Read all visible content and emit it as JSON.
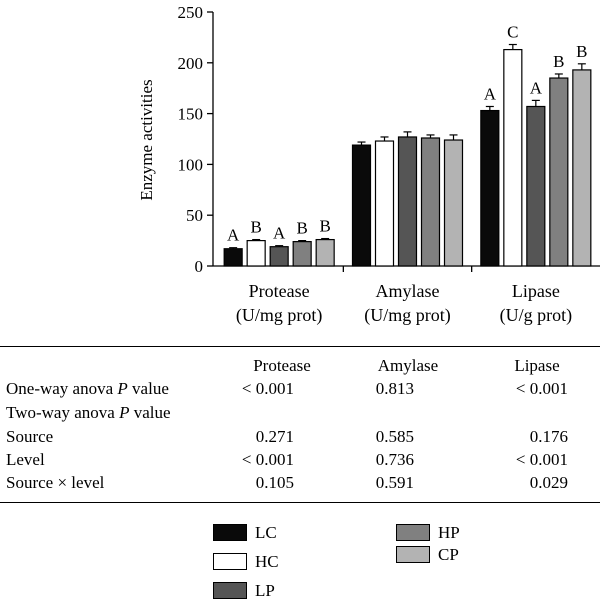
{
  "chart_data": {
    "type": "bar",
    "ylabel": "Enzyme activities",
    "ylim": [
      0,
      250
    ],
    "yticks": [
      0,
      50,
      100,
      150,
      200,
      250
    ],
    "categories": [
      {
        "line1": "Protease",
        "line2": "(U/mg prot)"
      },
      {
        "line1": "Amylase",
        "line2": "(U/mg prot)"
      },
      {
        "line1": "Lipase",
        "line2": "(U/g prot)"
      }
    ],
    "series": [
      {
        "name": "LC",
        "color": "#0a0a0a",
        "values": [
          17,
          119,
          153
        ],
        "errors": [
          1,
          3,
          4
        ],
        "letters": [
          "A",
          "",
          "A"
        ]
      },
      {
        "name": "HC",
        "color": "#ffffff",
        "values": [
          25,
          123,
          213
        ],
        "errors": [
          1,
          4,
          5
        ],
        "letters": [
          "B",
          "",
          "C"
        ]
      },
      {
        "name": "LP",
        "color": "#555555",
        "values": [
          19,
          127,
          157
        ],
        "errors": [
          1,
          5,
          6
        ],
        "letters": [
          "A",
          "",
          "A"
        ]
      },
      {
        "name": "HP",
        "color": "#808080",
        "values": [
          24,
          126,
          185
        ],
        "errors": [
          1,
          3,
          4
        ],
        "letters": [
          "B",
          "",
          "B"
        ]
      },
      {
        "name": "CP",
        "color": "#b3b3b3",
        "values": [
          26,
          124,
          193
        ],
        "errors": [
          1,
          5,
          6
        ],
        "letters": [
          "B",
          "",
          "B"
        ]
      }
    ]
  },
  "stats_table": {
    "headers": [
      "Protease",
      "Amylase",
      "Lipase"
    ],
    "rows": [
      {
        "label_pre": "One-way anova ",
        "label_p": "P",
        "label_post": " value",
        "values": [
          "< 0.001",
          "0.813",
          "< 0.001"
        ]
      },
      {
        "label_pre": "Two-way anova ",
        "label_p": "P",
        "label_post": " value",
        "values": [
          "",
          "",
          ""
        ]
      },
      {
        "label_pre": "Source",
        "label_p": "",
        "label_post": "",
        "values": [
          "0.271",
          "0.585",
          "0.176"
        ]
      },
      {
        "label_pre": "Level",
        "label_p": "",
        "label_post": "",
        "values": [
          "< 0.001",
          "0.736",
          "< 0.001"
        ]
      },
      {
        "label_pre": "Source × level",
        "label_p": "",
        "label_post": "",
        "values": [
          "0.105",
          "0.591",
          "0.029"
        ]
      }
    ]
  },
  "legend": {
    "items": [
      {
        "name": "LC",
        "color": "#0a0a0a"
      },
      {
        "name": "HC",
        "color": "#ffffff"
      },
      {
        "name": "LP",
        "color": "#555555"
      },
      {
        "name": "HP",
        "color": "#808080"
      },
      {
        "name": "CP",
        "color": "#b3b3b3"
      }
    ]
  }
}
